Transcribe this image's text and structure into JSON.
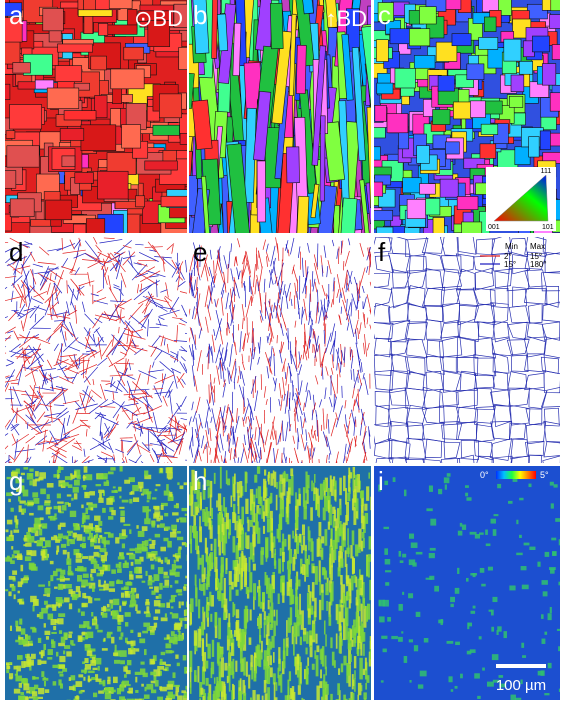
{
  "panels": [
    {
      "label": "a",
      "annotation": "⊙BD"
    },
    {
      "label": "b",
      "annotation": "↑BD"
    },
    {
      "label": "c",
      "ipf": {
        "top": "111",
        "left": "001",
        "right": "101"
      }
    },
    {
      "label": "d"
    },
    {
      "label": "e"
    },
    {
      "label": "f",
      "legend": {
        "header": [
          "Min",
          "Max"
        ],
        "rows": [
          {
            "min": "2°",
            "max": "15°"
          },
          {
            "min": "15°",
            "max": "180°"
          }
        ]
      }
    },
    {
      "label": "g"
    },
    {
      "label": "h"
    },
    {
      "label": "i",
      "colorbar": {
        "min": "0°",
        "max": "5°"
      },
      "scale_bar": "100 µm"
    }
  ]
}
